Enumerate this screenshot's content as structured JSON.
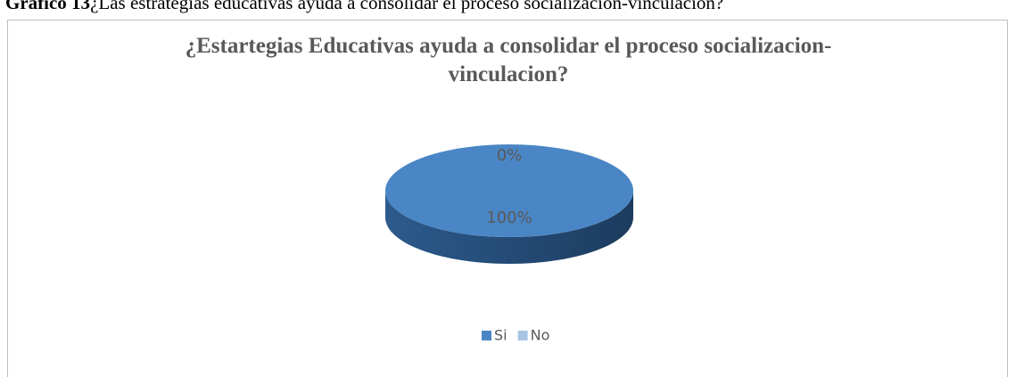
{
  "caption": {
    "label": "Gráfico 13",
    "text": "¿Las estrategias educativas ayuda a consolidar el proceso socialización-vinculación?"
  },
  "chart_data": {
    "type": "pie",
    "title": "¿Estartegias Educativas ayuda a consolidar el proceso socializacion-vinculacion?",
    "categories": [
      "Si",
      "No"
    ],
    "values": [
      100,
      0
    ],
    "value_labels": [
      "100%",
      "0%"
    ],
    "colors": [
      "#4a86c5",
      "#a9c4e4"
    ],
    "legend": "bottom"
  }
}
